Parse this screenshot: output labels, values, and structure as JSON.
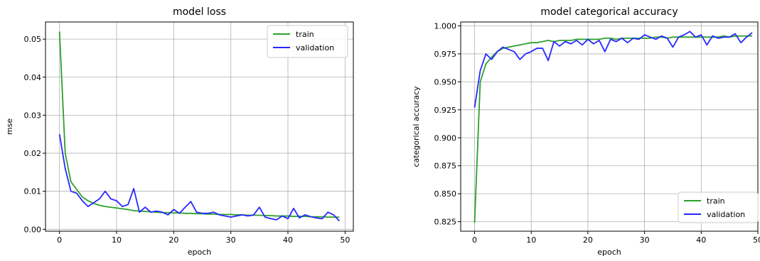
{
  "colors": {
    "train": "#2ca02c",
    "validation": "#2828ff",
    "grid": "#b0b0b0"
  },
  "chart_data": [
    {
      "type": "line",
      "title": "model loss",
      "xlabel": "epoch",
      "ylabel": "mse",
      "xlim": [
        -2.45,
        51.45
      ],
      "ylim": [
        -0.0005,
        0.0545
      ],
      "xticks": [
        0,
        10,
        20,
        30,
        40,
        50
      ],
      "xtick_labels": [
        "0",
        "10",
        "20",
        "30",
        "40",
        "50"
      ],
      "yticks": [
        0.0,
        0.01,
        0.02,
        0.03,
        0.04,
        0.05
      ],
      "ytick_labels": [
        "0.00",
        "0.01",
        "0.02",
        "0.03",
        "0.04",
        "0.05"
      ],
      "grid": true,
      "legend": "upper-right",
      "x": [
        0,
        1,
        2,
        3,
        4,
        5,
        6,
        7,
        8,
        9,
        10,
        11,
        12,
        13,
        14,
        15,
        16,
        17,
        18,
        19,
        20,
        21,
        22,
        23,
        24,
        25,
        26,
        27,
        28,
        29,
        30,
        31,
        32,
        33,
        34,
        35,
        36,
        37,
        38,
        39,
        40,
        41,
        42,
        43,
        44,
        45,
        46,
        47,
        48,
        49
      ],
      "series": [
        {
          "name": "train",
          "values": [
            0.052,
            0.02,
            0.0125,
            0.0105,
            0.0085,
            0.0075,
            0.0068,
            0.0063,
            0.006,
            0.0058,
            0.0056,
            0.0054,
            0.0052,
            0.0049,
            0.0048,
            0.0047,
            0.0046,
            0.0045,
            0.0044,
            0.0044,
            0.0043,
            0.0043,
            0.0042,
            0.0042,
            0.0041,
            0.0041,
            0.004,
            0.004,
            0.0039,
            0.0039,
            0.0039,
            0.0038,
            0.0038,
            0.0037,
            0.0037,
            0.0037,
            0.0036,
            0.0036,
            0.0035,
            0.0035,
            0.0035,
            0.0034,
            0.0034,
            0.0034,
            0.0033,
            0.0033,
            0.0033,
            0.0032,
            0.0032,
            0.0032
          ]
        },
        {
          "name": "validation",
          "values": [
            0.025,
            0.016,
            0.01,
            0.0095,
            0.0075,
            0.006,
            0.007,
            0.008,
            0.01,
            0.008,
            0.0075,
            0.006,
            0.0065,
            0.0107,
            0.0045,
            0.0058,
            0.0045,
            0.0048,
            0.0045,
            0.0038,
            0.0052,
            0.0042,
            0.0058,
            0.0073,
            0.0045,
            0.0042,
            0.0042,
            0.0045,
            0.0038,
            0.0035,
            0.0032,
            0.0035,
            0.0038,
            0.0035,
            0.0038,
            0.0058,
            0.0032,
            0.0028,
            0.0025,
            0.0035,
            0.0028,
            0.0055,
            0.003,
            0.0038,
            0.0033,
            0.003,
            0.0028,
            0.0045,
            0.0038,
            0.0022
          ]
        }
      ]
    },
    {
      "type": "line",
      "title": "model categorical accuracy",
      "xlabel": "epoch",
      "ylabel": "categorical accuracy",
      "xlim": [
        -2.45,
        50.0
      ],
      "ylim": [
        0.8165,
        1.0035
      ],
      "xticks": [
        0,
        10,
        20,
        30,
        40,
        50
      ],
      "xtick_labels": [
        "0",
        "10",
        "20",
        "30",
        "40",
        "50"
      ],
      "yticks": [
        0.825,
        0.85,
        0.875,
        0.9,
        0.925,
        0.95,
        0.975,
        1.0
      ],
      "ytick_labels": [
        "0.825",
        "0.850",
        "0.875",
        "0.900",
        "0.925",
        "0.950",
        "0.975",
        "1.000"
      ],
      "grid": true,
      "legend": "lower-right",
      "x": [
        0,
        1,
        2,
        3,
        4,
        5,
        6,
        7,
        8,
        9,
        10,
        11,
        12,
        13,
        14,
        15,
        16,
        17,
        18,
        19,
        20,
        21,
        22,
        23,
        24,
        25,
        26,
        27,
        28,
        29,
        30,
        31,
        32,
        33,
        34,
        35,
        36,
        37,
        38,
        39,
        40,
        41,
        42,
        43,
        44,
        45,
        46,
        47,
        48,
        49
      ],
      "series": [
        {
          "name": "train",
          "values": [
            0.824,
            0.95,
            0.966,
            0.972,
            0.977,
            0.98,
            0.981,
            0.982,
            0.983,
            0.984,
            0.985,
            0.985,
            0.986,
            0.987,
            0.986,
            0.987,
            0.987,
            0.987,
            0.988,
            0.988,
            0.988,
            0.988,
            0.988,
            0.989,
            0.989,
            0.988,
            0.989,
            0.989,
            0.989,
            0.989,
            0.989,
            0.989,
            0.99,
            0.99,
            0.989,
            0.99,
            0.99,
            0.99,
            0.99,
            0.99,
            0.99,
            0.99,
            0.99,
            0.99,
            0.991,
            0.99,
            0.991,
            0.991,
            0.991,
            0.991
          ]
        },
        {
          "name": "validation",
          "values": [
            0.927,
            0.96,
            0.975,
            0.97,
            0.977,
            0.981,
            0.979,
            0.977,
            0.97,
            0.975,
            0.977,
            0.98,
            0.98,
            0.969,
            0.986,
            0.982,
            0.986,
            0.984,
            0.987,
            0.983,
            0.988,
            0.984,
            0.987,
            0.977,
            0.988,
            0.986,
            0.989,
            0.985,
            0.989,
            0.988,
            0.992,
            0.99,
            0.988,
            0.991,
            0.989,
            0.981,
            0.99,
            0.992,
            0.995,
            0.99,
            0.992,
            0.983,
            0.991,
            0.989,
            0.99,
            0.99,
            0.993,
            0.985,
            0.99,
            0.994
          ]
        }
      ]
    }
  ]
}
